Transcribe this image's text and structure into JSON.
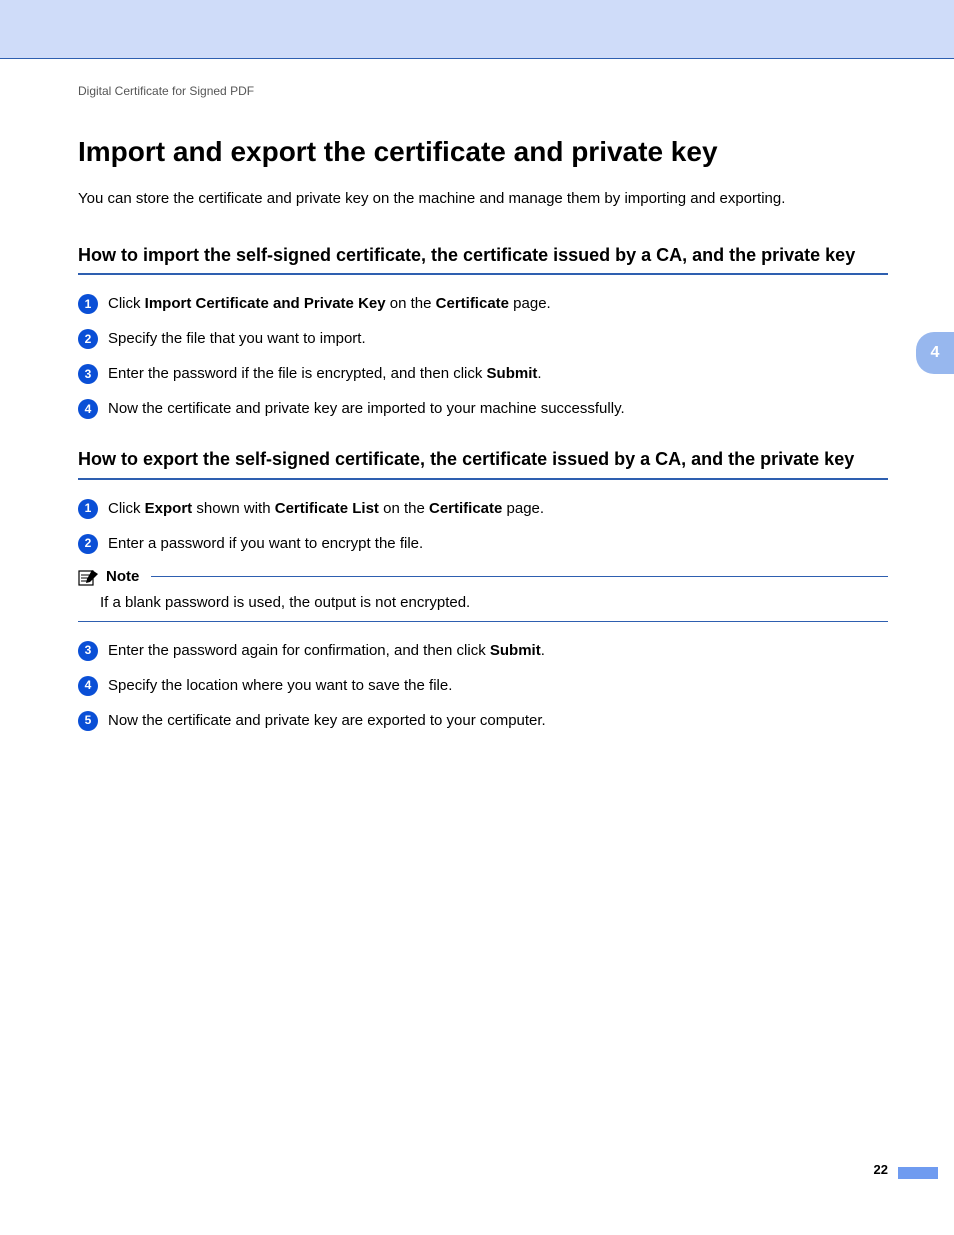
{
  "chapterTab": "4",
  "breadcrumb": "Digital Certificate for Signed PDF",
  "title": "Import and export the certificate and private key",
  "intro": "You can store the certificate and private key on the machine and manage them by importing and exporting.",
  "sections": [
    {
      "heading": "How to import the self-signed certificate, the certificate issued by a CA, and the private key",
      "steps": [
        {
          "n": "1",
          "html": "Click <b>Import Certificate and Private Key</b> on the <b>Certificate</b> page."
        },
        {
          "n": "2",
          "html": "Specify the file that you want to import."
        },
        {
          "n": "3",
          "html": "Enter the password if the file is encrypted, and then click <b>Submit</b>."
        },
        {
          "n": "4",
          "html": "Now the certificate and private key are imported to your machine successfully."
        }
      ]
    },
    {
      "heading": "How to export the self-signed certificate, the certificate issued by a CA, and the private key",
      "steps": [
        {
          "n": "1",
          "html": "Click <b>Export</b> shown with <b>Certificate List</b> on the <b>Certificate</b> page."
        },
        {
          "n": "2",
          "html": "Enter a password if you want to encrypt the file."
        },
        {
          "note": {
            "label": "Note",
            "body": "If a blank password is used, the output is not encrypted."
          }
        },
        {
          "n": "3",
          "html": "Enter the password again for confirmation, and then click <b>Submit</b>."
        },
        {
          "n": "4",
          "html": "Specify the location where you want to save the file."
        },
        {
          "n": "5",
          "html": "Now the certificate and private key are exported to your computer."
        }
      ]
    }
  ],
  "pageNumber": "22",
  "colors": {
    "band": "#cfdcf9",
    "rule": "#2e5fb0",
    "bullet": "#0a4fd6",
    "tab": "#97b7ee",
    "accent": "#6f9bf0"
  }
}
